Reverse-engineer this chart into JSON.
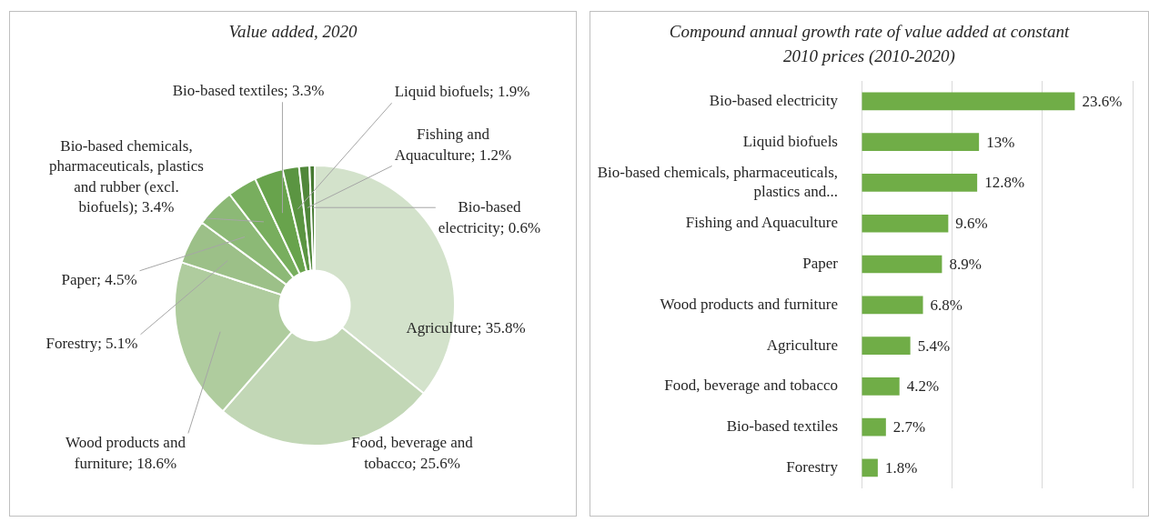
{
  "chart_data": [
    {
      "type": "donut",
      "title": "Value added, 2020",
      "categories": [
        "Agriculture",
        "Food, beverage and tobacco",
        "Wood products and furniture",
        "Forestry",
        "Paper",
        "Bio-based chemicals, pharmaceuticals, plastics and rubber (excl. biofuels)",
        "Bio-based textiles",
        "Liquid biofuels",
        "Fishing and Aquaculture",
        "Bio-based electricity"
      ],
      "values": [
        35.8,
        25.6,
        18.6,
        5.1,
        4.5,
        3.4,
        3.3,
        1.9,
        1.2,
        0.6
      ],
      "colors": [
        "#d3e2cb",
        "#c2d7b6",
        "#afcc9e",
        "#9cc088",
        "#8cb976",
        "#78ae5e",
        "#68a34c",
        "#5b9542",
        "#50873a",
        "#467a32"
      ],
      "value_labels": [
        "35.8%",
        "25.6%",
        "18.6%",
        "5.1%",
        "4.5%",
        "3.4%",
        "3.3%",
        "1.9%",
        "1.2%",
        "0.6%"
      ],
      "legend": false
    },
    {
      "type": "bar",
      "orientation": "horizontal",
      "title": "Compound annual growth rate of value added at constant 2010 prices (2010-2020)",
      "categories": [
        "Bio-based electricity",
        "Liquid biofuels",
        "Bio-based chemicals, pharmaceuticals, plastics and...",
        "Fishing and Aquaculture",
        "Paper",
        "Wood products and furniture",
        "Agriculture",
        "Food, beverage and tobacco",
        "Bio-based textiles",
        "Forestry"
      ],
      "values": [
        23.6,
        13,
        12.8,
        9.6,
        8.9,
        6.8,
        5.4,
        4.2,
        2.7,
        1.8
      ],
      "color": "#70ad47",
      "value_labels": [
        "23.6%",
        "13%",
        "12.8%",
        "9.6%",
        "8.9%",
        "6.8%",
        "5.4%",
        "4.2%",
        "2.7%",
        "1.8%"
      ],
      "xlim": [
        0,
        30
      ],
      "xticks": [
        {
          "value": 0,
          "label": null
        },
        {
          "value": 10,
          "label": null
        },
        {
          "value": 20,
          "label": null
        },
        {
          "value": 30,
          "label": null
        }
      ],
      "grid": "x",
      "tick_labels": "y",
      "legend": false
    }
  ]
}
